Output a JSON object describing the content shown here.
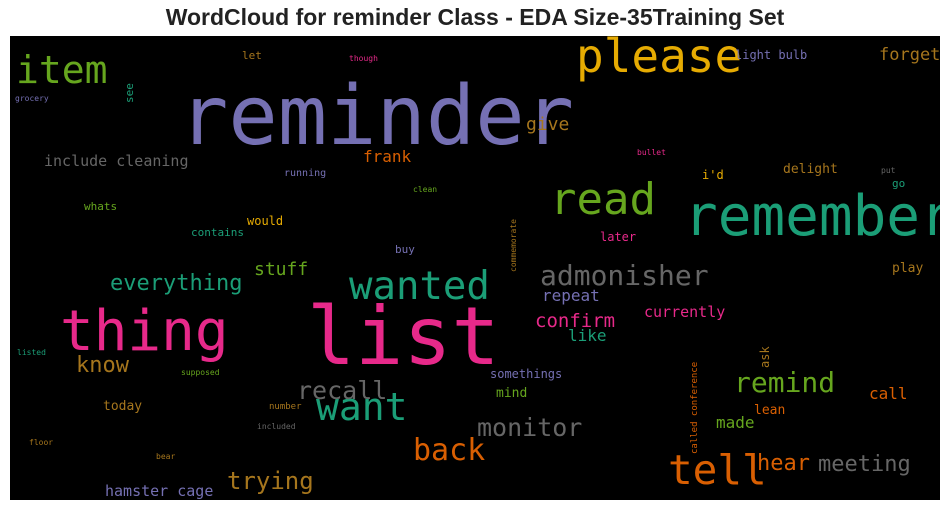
{
  "chart_data": {
    "type": "wordcloud",
    "title": "WordCloud for reminder Class - EDA Size-35Training Set",
    "background": "#000000",
    "words": [
      {
        "text": "reminder",
        "weight": 1.0,
        "color": "#7570b3",
        "rotate": 0
      },
      {
        "text": "list",
        "weight": 0.98,
        "color": "#e7298a",
        "rotate": 0
      },
      {
        "text": "remember",
        "weight": 0.68,
        "color": "#1b9e77",
        "rotate": 0
      },
      {
        "text": "thing",
        "weight": 0.68,
        "color": "#e7298a",
        "rotate": 0
      },
      {
        "text": "please",
        "weight": 0.56,
        "color": "#e6ab02",
        "rotate": 0
      },
      {
        "text": "read",
        "weight": 0.54,
        "color": "#66a61e",
        "rotate": 0
      },
      {
        "text": "tell",
        "weight": 0.5,
        "color": "#d95f02",
        "rotate": 0
      },
      {
        "text": "wanted",
        "weight": 0.48,
        "color": "#1b9e77",
        "rotate": 0
      },
      {
        "text": "item",
        "weight": 0.46,
        "color": "#66a61e",
        "rotate": 0
      },
      {
        "text": "want",
        "weight": 0.46,
        "color": "#1b9e77",
        "rotate": 0
      },
      {
        "text": "admonisher",
        "weight": 0.34,
        "color": "#666666",
        "rotate": 0
      },
      {
        "text": "back",
        "weight": 0.36,
        "color": "#d95f02",
        "rotate": 0
      },
      {
        "text": "remind",
        "weight": 0.34,
        "color": "#66a61e",
        "rotate": 0
      },
      {
        "text": "monitor",
        "weight": 0.31,
        "color": "#666666",
        "rotate": 0
      },
      {
        "text": "recall",
        "weight": 0.31,
        "color": "#666666",
        "rotate": 0
      },
      {
        "text": "trying",
        "weight": 0.29,
        "color": "#a6761d",
        "rotate": 0
      },
      {
        "text": "meeting",
        "weight": 0.27,
        "color": "#666666",
        "rotate": 0
      },
      {
        "text": "hear",
        "weight": 0.27,
        "color": "#d95f02",
        "rotate": 0
      },
      {
        "text": "everything",
        "weight": 0.27,
        "color": "#1b9e77",
        "rotate": 0
      },
      {
        "text": "know",
        "weight": 0.27,
        "color": "#a6761d",
        "rotate": 0
      },
      {
        "text": "confirm",
        "weight": 0.23,
        "color": "#e7298a",
        "rotate": 0
      },
      {
        "text": "stuff",
        "weight": 0.22,
        "color": "#66a61e",
        "rotate": 0
      },
      {
        "text": "give",
        "weight": 0.22,
        "color": "#a6761d",
        "rotate": 0
      },
      {
        "text": "forget",
        "weight": 0.21,
        "color": "#a6761d",
        "rotate": 0
      },
      {
        "text": "call",
        "weight": 0.2,
        "color": "#d95f02",
        "rotate": 0
      },
      {
        "text": "frank",
        "weight": 0.2,
        "color": "#d95f02",
        "rotate": 0
      },
      {
        "text": "repeat",
        "weight": 0.19,
        "color": "#7570b3",
        "rotate": 0
      },
      {
        "text": "like",
        "weight": 0.19,
        "color": "#1b9e77",
        "rotate": 0
      },
      {
        "text": "made",
        "weight": 0.19,
        "color": "#66a61e",
        "rotate": 0
      },
      {
        "text": "currently",
        "weight": 0.18,
        "color": "#e7298a",
        "rotate": 0
      },
      {
        "text": "include cleaning",
        "weight": 0.18,
        "color": "#666666",
        "rotate": 0
      },
      {
        "text": "hamster cage",
        "weight": 0.18,
        "color": "#7570b3",
        "rotate": 0
      },
      {
        "text": "play",
        "weight": 0.16,
        "color": "#a6761d",
        "rotate": 0
      },
      {
        "text": "today",
        "weight": 0.16,
        "color": "#a6761d",
        "rotate": 0
      },
      {
        "text": "lean",
        "weight": 0.16,
        "color": "#d95f02",
        "rotate": 0
      },
      {
        "text": "mind",
        "weight": 0.16,
        "color": "#66a61e",
        "rotate": 0
      },
      {
        "text": "delight",
        "weight": 0.16,
        "color": "#a6761d",
        "rotate": 0
      },
      {
        "text": "later",
        "weight": 0.15,
        "color": "#e7298a",
        "rotate": 0
      },
      {
        "text": "light bulb",
        "weight": 0.15,
        "color": "#7570b3",
        "rotate": 0
      },
      {
        "text": "would",
        "weight": 0.15,
        "color": "#e6ab02",
        "rotate": 0
      },
      {
        "text": "i'd",
        "weight": 0.15,
        "color": "#e6ab02",
        "rotate": 0
      },
      {
        "text": "ask",
        "weight": 0.15,
        "color": "#a6761d",
        "rotate": -90
      },
      {
        "text": "somethings",
        "weight": 0.15,
        "color": "#7570b3",
        "rotate": 0
      },
      {
        "text": "contains",
        "weight": 0.14,
        "color": "#1b9e77",
        "rotate": 0
      },
      {
        "text": "whats",
        "weight": 0.14,
        "color": "#66a61e",
        "rotate": 0
      },
      {
        "text": "buy",
        "weight": 0.14,
        "color": "#7570b3",
        "rotate": 0
      },
      {
        "text": "go",
        "weight": 0.14,
        "color": "#1b9e77",
        "rotate": 0
      },
      {
        "text": "let",
        "weight": 0.13,
        "color": "#a6761d",
        "rotate": 0
      },
      {
        "text": "see",
        "weight": 0.13,
        "color": "#1b9e77",
        "rotate": -90
      },
      {
        "text": "running",
        "weight": 0.12,
        "color": "#7570b3",
        "rotate": 0
      },
      {
        "text": "number",
        "weight": 0.11,
        "color": "#a6761d",
        "rotate": 0
      },
      {
        "text": "called conference",
        "weight": 0.11,
        "color": "#d95f02",
        "rotate": -90
      },
      {
        "text": "supposed",
        "weight": 0.1,
        "color": "#66a61e",
        "rotate": 0
      },
      {
        "text": "though",
        "weight": 0.1,
        "color": "#e7298a",
        "rotate": 0
      },
      {
        "text": "clean",
        "weight": 0.1,
        "color": "#66a61e",
        "rotate": 0
      },
      {
        "text": "bullet",
        "weight": 0.1,
        "color": "#e7298a",
        "rotate": 0
      },
      {
        "text": "put",
        "weight": 0.1,
        "color": "#666666",
        "rotate": 0
      },
      {
        "text": "grocery",
        "weight": 0.1,
        "color": "#7570b3",
        "rotate": 0
      },
      {
        "text": "listed",
        "weight": 0.1,
        "color": "#1b9e77",
        "rotate": 0
      },
      {
        "text": "floor",
        "weight": 0.1,
        "color": "#a6761d",
        "rotate": 0
      },
      {
        "text": "bear",
        "weight": 0.1,
        "color": "#a6761d",
        "rotate": 0
      },
      {
        "text": "included",
        "weight": 0.1,
        "color": "#666666",
        "rotate": 0
      },
      {
        "text": "commemorate",
        "weight": 0.09,
        "color": "#a6761d",
        "rotate": -90
      }
    ]
  }
}
